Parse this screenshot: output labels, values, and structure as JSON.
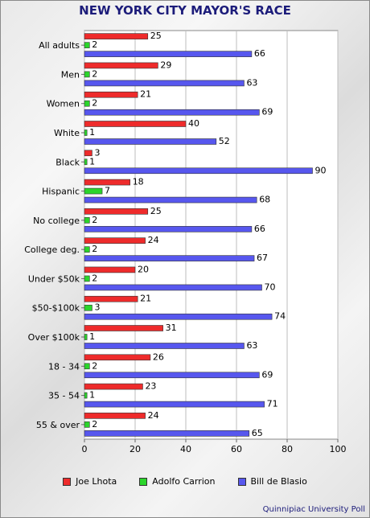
{
  "chart_data": {
    "type": "bar",
    "orientation": "horizontal",
    "title": "NEW YORK CITY MAYOR'S RACE",
    "categories": [
      "All adults",
      "Men",
      "Women",
      "White",
      "Black",
      "Hispanic",
      "No college",
      "College deg.",
      "Under $50k",
      "$50-$100k",
      "Over $100k",
      "18 - 34",
      "35 - 54",
      "55 & over"
    ],
    "series": [
      {
        "name": "Joe Lhota",
        "color": "#ee2b2b",
        "values": [
          25,
          29,
          21,
          40,
          3,
          18,
          25,
          24,
          20,
          21,
          31,
          26,
          23,
          24
        ]
      },
      {
        "name": "Adolfo Carrion",
        "color": "#2bd52b",
        "values": [
          2,
          2,
          2,
          1,
          1,
          7,
          2,
          2,
          2,
          3,
          1,
          2,
          1,
          2
        ]
      },
      {
        "name": "Bill de Blasio",
        "color": "#5757ee",
        "values": [
          66,
          63,
          69,
          52,
          90,
          68,
          66,
          67,
          70,
          74,
          63,
          69,
          71,
          65
        ]
      }
    ],
    "xlim": [
      0,
      100
    ],
    "xticks": [
      "0",
      "20",
      "40",
      "60",
      "80",
      "100"
    ],
    "grid": true,
    "legend_position": "bottom"
  },
  "source": "Quinnipiac University Poll"
}
